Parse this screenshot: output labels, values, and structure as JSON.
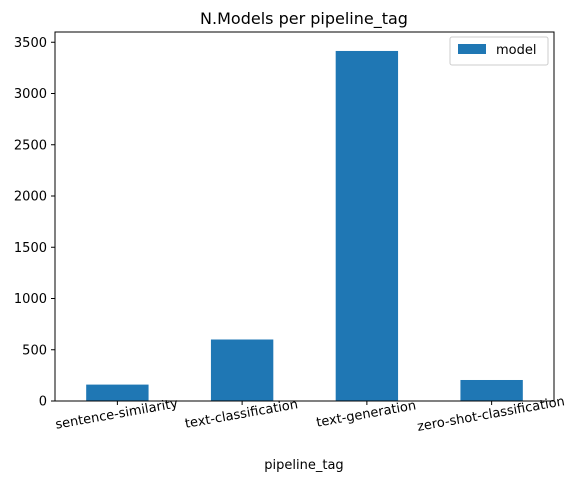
{
  "chart_data": {
    "type": "bar",
    "title": "N.Models per pipeline_tag",
    "xlabel": "pipeline_tag",
    "ylabel": "",
    "categories": [
      "sentence-similarity",
      "text-classification",
      "text-generation",
      "zero-shot-classification"
    ],
    "series": [
      {
        "name": "model",
        "values": [
          160,
          600,
          3415,
          205
        ]
      }
    ],
    "ylim": [
      0,
      3600
    ],
    "yticks": [
      0,
      500,
      1000,
      1500,
      2000,
      2500,
      3000,
      3500
    ],
    "ytick_labels": [
      "0",
      "500",
      "1000",
      "1500",
      "2000",
      "2500",
      "3000",
      "3500"
    ],
    "grid": false,
    "legend_position": "top-right",
    "bar_color": "#1f77b4"
  }
}
